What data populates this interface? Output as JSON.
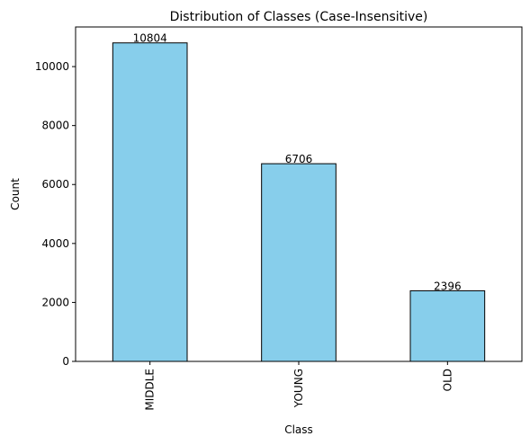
{
  "chart_data": {
    "type": "bar",
    "title": "Distribution of Classes (Case-Insensitive)",
    "xlabel": "Class",
    "ylabel": "Count",
    "categories": [
      "MIDDLE",
      "YOUNG",
      "OLD"
    ],
    "values": [
      10804,
      6706,
      2396
    ],
    "data_labels": [
      "10804",
      "6706",
      "2396"
    ],
    "ylim": [
      0,
      11344
    ],
    "yticks": [
      0,
      2000,
      4000,
      6000,
      8000,
      10000
    ],
    "ytick_labels": [
      "0",
      "2000",
      "4000",
      "6000",
      "8000",
      "10000"
    ],
    "bar_color": "#87CEEB",
    "edge_color": "#000000",
    "grid": false,
    "legend": "none"
  }
}
